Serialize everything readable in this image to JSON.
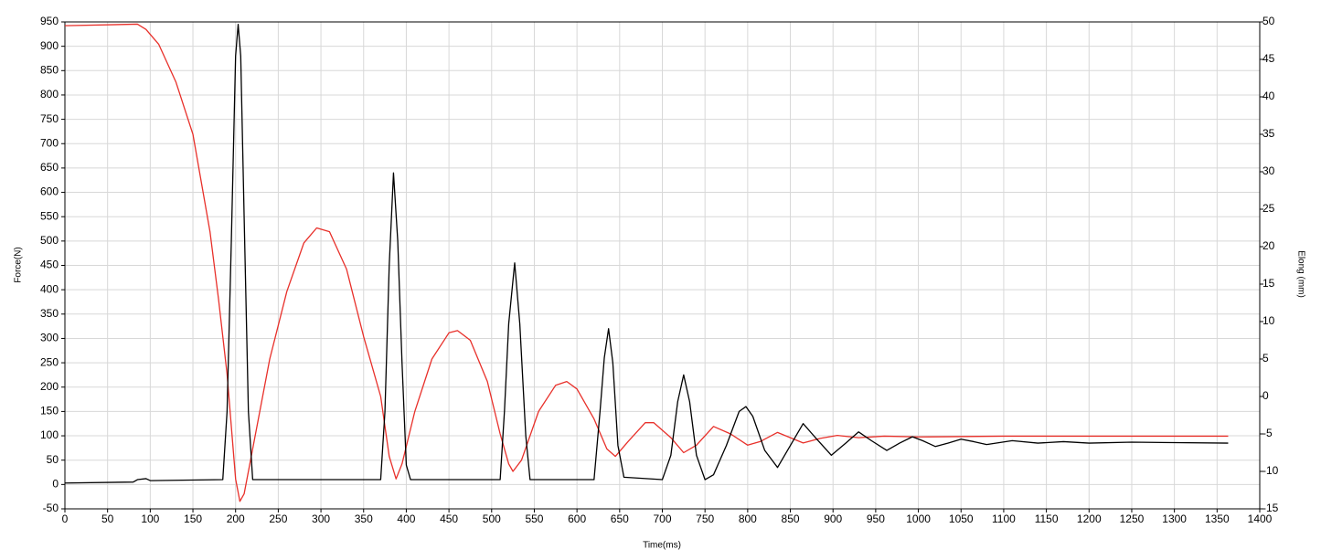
{
  "chart_data": {
    "type": "line",
    "xlabel": "Time(ms)",
    "ylabel": "Force(N)",
    "y2label": "Elong (mm)",
    "xlim": [
      0,
      1400
    ],
    "xticks": [
      0,
      50,
      100,
      150,
      200,
      250,
      300,
      350,
      400,
      450,
      500,
      550,
      600,
      650,
      700,
      750,
      800,
      850,
      900,
      950,
      1000,
      1050,
      1100,
      1150,
      1200,
      1250,
      1300,
      1350,
      1400
    ],
    "ylim": [
      -50,
      950
    ],
    "yticks": [
      -50,
      0,
      50,
      100,
      150,
      200,
      250,
      300,
      350,
      400,
      450,
      500,
      550,
      600,
      650,
      700,
      750,
      800,
      850,
      900,
      950
    ],
    "y2lim": [
      -15,
      50
    ],
    "y2ticks": [
      -15,
      -10,
      -5,
      0,
      5,
      10,
      15,
      20,
      25,
      30,
      35,
      40,
      45,
      50
    ],
    "grid": true,
    "series": [
      {
        "name": "Force",
        "color": "#000000",
        "x": [
          0,
          80,
          85,
          95,
          100,
          185,
          190,
          195,
          200,
          203,
          206,
          210,
          215,
          220,
          370,
          375,
          380,
          385,
          390,
          395,
          400,
          405,
          510,
          515,
          520,
          527,
          533,
          540,
          545,
          620,
          627,
          632,
          637,
          642,
          648,
          655,
          700,
          710,
          718,
          725,
          732,
          740,
          750,
          760,
          775,
          790,
          798,
          806,
          820,
          835,
          850,
          865,
          880,
          898,
          915,
          930,
          945,
          963,
          978,
          993,
          1005,
          1020,
          1035,
          1050,
          1065,
          1080,
          1110,
          1140,
          1170,
          1200,
          1250,
          1300,
          1363
        ],
        "values": [
          3,
          5,
          10,
          12,
          8,
          10,
          150,
          500,
          880,
          945,
          880,
          550,
          150,
          10,
          10,
          150,
          450,
          640,
          500,
          250,
          40,
          10,
          10,
          150,
          330,
          455,
          330,
          100,
          10,
          10,
          150,
          260,
          320,
          250,
          80,
          15,
          10,
          60,
          170,
          225,
          170,
          60,
          10,
          20,
          80,
          150,
          160,
          140,
          70,
          35,
          80,
          125,
          95,
          60,
          85,
          108,
          90,
          70,
          85,
          98,
          90,
          78,
          85,
          93,
          88,
          82,
          90,
          85,
          88,
          85,
          87,
          86,
          85
        ]
      },
      {
        "name": "Elong",
        "color": "#e8302a",
        "axis": "y2",
        "x": [
          0,
          85,
          95,
          110,
          130,
          150,
          170,
          180,
          190,
          200,
          205,
          210,
          220,
          240,
          260,
          280,
          295,
          310,
          330,
          350,
          370,
          380,
          388,
          395,
          410,
          430,
          450,
          460,
          475,
          495,
          510,
          520,
          525,
          535,
          555,
          575,
          588,
          600,
          620,
          635,
          645,
          660,
          680,
          690,
          710,
          725,
          740,
          760,
          780,
          800,
          815,
          835,
          850,
          865,
          885,
          905,
          930,
          960,
          1000,
          1100,
          1363
        ],
        "values": [
          49.5,
          49.7,
          49,
          47,
          42,
          35,
          22,
          13,
          3,
          -11,
          -14,
          -13,
          -7,
          5,
          14,
          20.5,
          22.5,
          22,
          17,
          8,
          0,
          -8,
          -11,
          -9,
          -2,
          5,
          8.5,
          8.8,
          7.5,
          2,
          -5,
          -9,
          -10,
          -8.5,
          -2,
          1.5,
          2,
          1,
          -3,
          -7,
          -8,
          -6,
          -3.5,
          -3.5,
          -5.5,
          -7.5,
          -6.5,
          -4,
          -5,
          -6.5,
          -6,
          -4.8,
          -5.5,
          -6.2,
          -5.6,
          -5.2,
          -5.5,
          -5.3,
          -5.4,
          -5.3,
          -5.3
        ]
      }
    ]
  }
}
